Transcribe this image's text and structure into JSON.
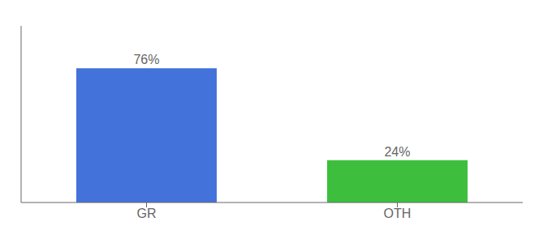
{
  "chart_data": {
    "type": "bar",
    "categories": [
      "GR",
      "OTH"
    ],
    "values": [
      76,
      24
    ],
    "value_labels": [
      "76%",
      "24%"
    ],
    "colors": [
      "#4472db",
      "#3dbf3d"
    ],
    "ylim": [
      0,
      100
    ],
    "grid": false,
    "data_labels": true,
    "tick_labels": "x"
  }
}
